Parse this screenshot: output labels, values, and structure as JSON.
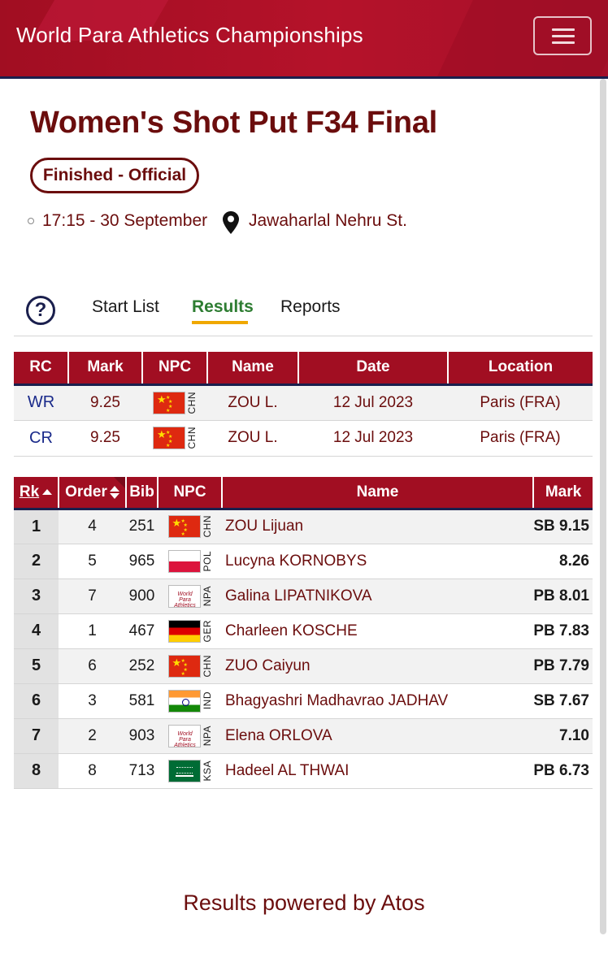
{
  "header": {
    "title": "World Para Athletics Championships"
  },
  "event": {
    "title": "Women's Shot Put F34 Final",
    "status": "Finished - Official",
    "time": "17:15 - 30 September",
    "venue": "Jawaharlal Nehru St."
  },
  "tabs": [
    "Start List",
    "Results",
    "Reports"
  ],
  "active_tab": "Results",
  "records": {
    "headers": [
      "RC",
      "Mark",
      "NPC",
      "Name",
      "Date",
      "Location"
    ],
    "rows": [
      {
        "rc": "WR",
        "mark": "9.25",
        "npc": "CHN",
        "name": "ZOU L.",
        "date": "12 Jul 2023",
        "location": "Paris (FRA)"
      },
      {
        "rc": "CR",
        "mark": "9.25",
        "npc": "CHN",
        "name": "ZOU L.",
        "date": "12 Jul 2023",
        "location": "Paris (FRA)"
      }
    ]
  },
  "results": {
    "headers": [
      "Rk",
      "Order",
      "Bib",
      "NPC",
      "Name",
      "Mark"
    ],
    "rows": [
      {
        "rk": "1",
        "order": "4",
        "bib": "251",
        "npc": "CHN",
        "name": "ZOU Lijuan",
        "mark": "SB 9.15"
      },
      {
        "rk": "2",
        "order": "5",
        "bib": "965",
        "npc": "POL",
        "name": "Lucyna KORNOBYS",
        "mark": "8.26"
      },
      {
        "rk": "3",
        "order": "7",
        "bib": "900",
        "npc": "NPA",
        "name": "Galina LIPATNIKOVA",
        "mark": "PB 8.01"
      },
      {
        "rk": "4",
        "order": "1",
        "bib": "467",
        "npc": "GER",
        "name": "Charleen KOSCHE",
        "mark": "PB 7.83"
      },
      {
        "rk": "5",
        "order": "6",
        "bib": "252",
        "npc": "CHN",
        "name": "ZUO Caiyun",
        "mark": "PB 7.79"
      },
      {
        "rk": "6",
        "order": "3",
        "bib": "581",
        "npc": "IND",
        "name": "Bhagyashri Madhavrao JADHAV",
        "mark": "SB 7.67"
      },
      {
        "rk": "7",
        "order": "2",
        "bib": "903",
        "npc": "NPA",
        "name": "Elena ORLOVA",
        "mark": "7.10"
      },
      {
        "rk": "8",
        "order": "8",
        "bib": "713",
        "npc": "KSA",
        "name": "Hadeel AL THWAI",
        "mark": "PB 6.73"
      }
    ]
  },
  "npa_logo_text": "World Para Athletics",
  "footer": "Results powered by Atos",
  "colors": {
    "header_red": "#a10e22",
    "text_maroon": "#6b0d0d",
    "active_tab": "#2e7d32",
    "tab_underline": "#f0a800",
    "navy": "#1a1f4d"
  }
}
